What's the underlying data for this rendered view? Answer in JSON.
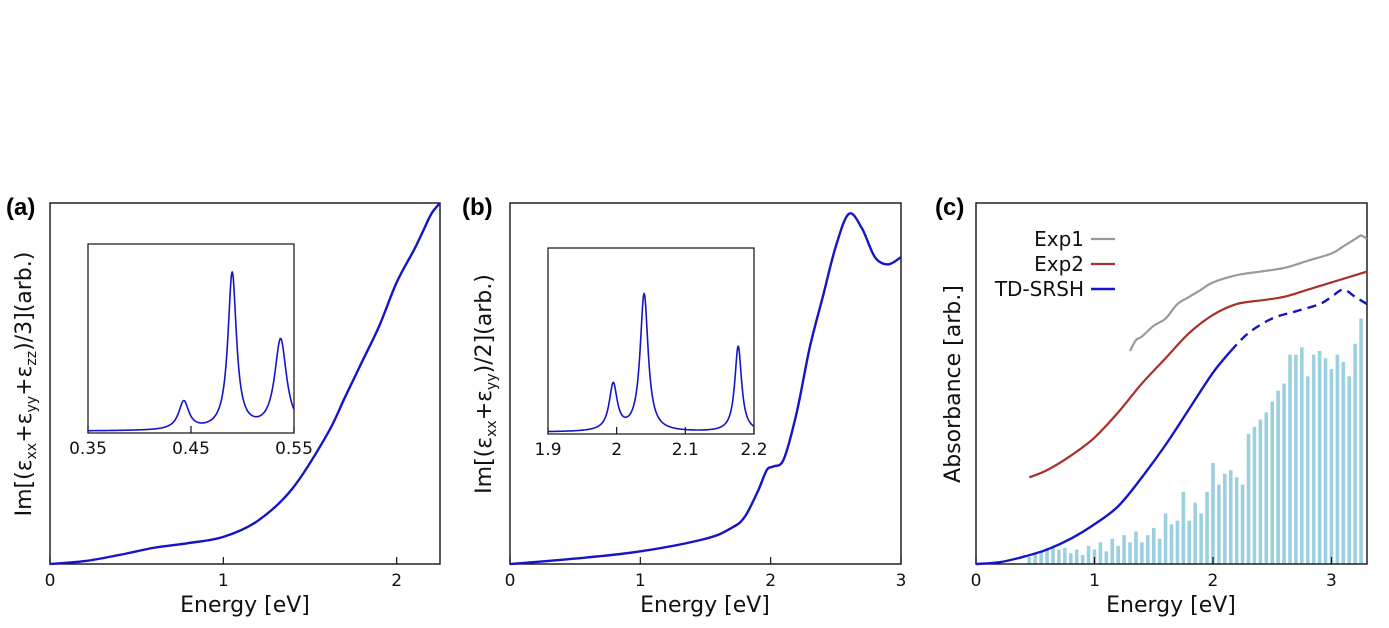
{
  "chart_data": [
    {
      "type": "line",
      "panel": "(a)",
      "xlabel": "Energy [eV]",
      "ylabel_parts": [
        "Im[(ε",
        "xx",
        "+ε",
        "yy",
        "+ε",
        "zz",
        ")/3](arb.)"
      ],
      "xlim": [
        0,
        2.25
      ],
      "ylim": [
        0,
        1
      ],
      "xticks": [
        "0",
        "1",
        "2"
      ],
      "xtick_values": [
        0,
        1,
        2
      ],
      "series": [
        {
          "name": "spectrum",
          "color": "#1515c8",
          "x": [
            0,
            0.2,
            0.4,
            0.6,
            0.8,
            1.0,
            1.2,
            1.4,
            1.6,
            1.7,
            1.8,
            1.9,
            2.0,
            2.1,
            2.15,
            2.2,
            2.25
          ],
          "y": [
            0,
            0.008,
            0.025,
            0.045,
            0.058,
            0.075,
            0.12,
            0.21,
            0.36,
            0.46,
            0.56,
            0.66,
            0.78,
            0.87,
            0.92,
            0.97,
            1.0
          ]
        }
      ],
      "inset": {
        "xlim": [
          0.35,
          0.55
        ],
        "ylim": [
          0,
          1
        ],
        "xticks": [
          "0.35",
          "0.45",
          "0.55"
        ],
        "xtick_values": [
          0.35,
          0.45,
          0.55
        ],
        "peaks": [
          [
            0.443,
            0.15,
            0.006
          ],
          [
            0.49,
            0.83,
            0.005
          ],
          [
            0.537,
            0.48,
            0.007
          ]
        ],
        "baseline": 0.01
      }
    },
    {
      "type": "line",
      "panel": "(b)",
      "xlabel": "Energy [eV]",
      "ylabel_parts": [
        "Im[(ε",
        "xx",
        "+ε",
        "yy",
        ")/2](arb.)"
      ],
      "xlim": [
        0,
        3
      ],
      "ylim": [
        0,
        1
      ],
      "xticks": [
        "0",
        "1",
        "2",
        "3"
      ],
      "xtick_values": [
        0,
        1,
        2,
        3
      ],
      "series": [
        {
          "name": "spectrum",
          "color": "#1515c8",
          "x": [
            0,
            0.5,
            1.0,
            1.5,
            1.7,
            1.8,
            1.9,
            1.97,
            2.02,
            2.1,
            2.2,
            2.3,
            2.4,
            2.5,
            2.6,
            2.7,
            2.8,
            2.9,
            3.0
          ],
          "y": [
            0,
            0.015,
            0.035,
            0.07,
            0.1,
            0.13,
            0.2,
            0.26,
            0.27,
            0.29,
            0.42,
            0.6,
            0.74,
            0.88,
            0.97,
            0.93,
            0.85,
            0.83,
            0.85
          ]
        }
      ],
      "inset": {
        "xlim": [
          1.9,
          2.2
        ],
        "ylim": [
          0,
          1
        ],
        "xticks": [
          "1.9",
          "2",
          "2.1",
          "2.2"
        ],
        "xtick_values": [
          1.9,
          2.0,
          2.1,
          2.2
        ],
        "peaks": [
          [
            1.995,
            0.25,
            0.007
          ],
          [
            2.04,
            0.74,
            0.007
          ],
          [
            2.177,
            0.46,
            0.006
          ]
        ],
        "baseline": 0.01
      }
    },
    {
      "type": "line",
      "panel": "(c)",
      "xlabel": "Energy [eV]",
      "ylabel": "Absorbance [arb.]",
      "xlim": [
        0,
        3.3
      ],
      "ylim": [
        0,
        1
      ],
      "xticks": [
        "0",
        "1",
        "2",
        "3"
      ],
      "xtick_values": [
        0,
        1,
        2,
        3
      ],
      "legend": [
        "Exp1",
        "Exp2",
        "TD-SRSH"
      ],
      "legend_position": "top-left",
      "series": [
        {
          "name": "Exp1",
          "color": "#9a9a9a",
          "x": [
            1.3,
            1.35,
            1.4,
            1.5,
            1.6,
            1.7,
            1.8,
            1.9,
            2.0,
            2.2,
            2.4,
            2.6,
            2.8,
            3.0,
            3.1,
            3.2,
            3.25,
            3.3
          ],
          "y": [
            0.59,
            0.62,
            0.63,
            0.66,
            0.68,
            0.72,
            0.74,
            0.76,
            0.78,
            0.8,
            0.81,
            0.82,
            0.84,
            0.86,
            0.88,
            0.9,
            0.91,
            0.9
          ]
        },
        {
          "name": "Exp2",
          "color": "#a8302a",
          "x": [
            0.45,
            0.6,
            0.8,
            1.0,
            1.2,
            1.4,
            1.6,
            1.8,
            2.0,
            2.2,
            2.4,
            2.6,
            2.8,
            3.0,
            3.2,
            3.3
          ],
          "y": [
            0.24,
            0.26,
            0.3,
            0.35,
            0.42,
            0.5,
            0.57,
            0.64,
            0.69,
            0.72,
            0.73,
            0.74,
            0.76,
            0.78,
            0.8,
            0.81
          ]
        },
        {
          "name": "TD-SRSH",
          "color": "#1515c8",
          "x": [
            0,
            0.2,
            0.4,
            0.6,
            0.8,
            1.0,
            1.2,
            1.4,
            1.6,
            1.8,
            2.0,
            2.15,
            2.3,
            2.5,
            2.7,
            2.9,
            3.0,
            3.1,
            3.2,
            3.3
          ],
          "y": [
            0,
            0.005,
            0.02,
            0.04,
            0.07,
            0.11,
            0.16,
            0.24,
            0.33,
            0.43,
            0.53,
            0.59,
            0.64,
            0.68,
            0.7,
            0.72,
            0.74,
            0.76,
            0.74,
            0.72
          ]
        },
        {
          "name": "stick spectrum",
          "color": "#9cd0e0",
          "x": [
            0.45,
            0.5,
            0.55,
            0.6,
            0.65,
            0.7,
            0.75,
            0.8,
            0.85,
            0.9,
            0.95,
            1.0,
            1.05,
            1.1,
            1.15,
            1.2,
            1.25,
            1.3,
            1.35,
            1.4,
            1.45,
            1.5,
            1.55,
            1.6,
            1.65,
            1.7,
            1.75,
            1.8,
            1.85,
            1.9,
            1.95,
            2.0,
            2.05,
            2.1,
            2.15,
            2.2,
            2.25,
            2.3,
            2.35,
            2.4,
            2.45,
            2.5,
            2.55,
            2.6,
            2.65,
            2.7,
            2.75,
            2.8,
            2.85,
            2.9,
            2.95,
            3.0,
            3.05,
            3.1,
            3.15,
            3.2,
            3.25
          ],
          "y": [
            0.02,
            0.03,
            0.035,
            0.045,
            0.05,
            0.04,
            0.045,
            0.03,
            0.04,
            0.025,
            0.05,
            0.04,
            0.06,
            0.035,
            0.07,
            0.05,
            0.08,
            0.06,
            0.09,
            0.06,
            0.08,
            0.1,
            0.07,
            0.14,
            0.11,
            0.12,
            0.2,
            0.12,
            0.17,
            0.14,
            0.2,
            0.28,
            0.22,
            0.25,
            0.26,
            0.24,
            0.22,
            0.36,
            0.38,
            0.4,
            0.42,
            0.45,
            0.48,
            0.5,
            0.58,
            0.58,
            0.6,
            0.52,
            0.58,
            0.59,
            0.57,
            0.54,
            0.58,
            0.56,
            0.52,
            0.61,
            0.68
          ]
        }
      ]
    }
  ]
}
